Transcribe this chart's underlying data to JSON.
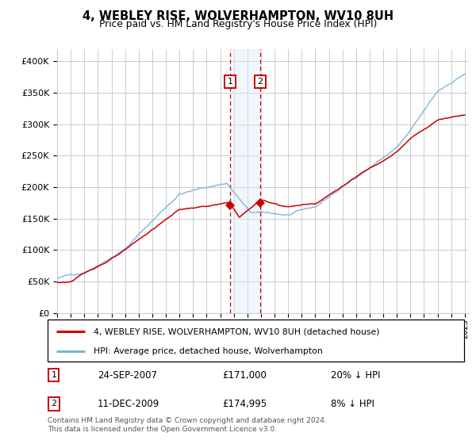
{
  "title": "4, WEBLEY RISE, WOLVERHAMPTON, WV10 8UH",
  "subtitle": "Price paid vs. HM Land Registry's House Price Index (HPI)",
  "legend_line1": "4, WEBLEY RISE, WOLVERHAMPTON, WV10 8UH (detached house)",
  "legend_line2": "HPI: Average price, detached house, Wolverhampton",
  "annotation1_date": "24-SEP-2007",
  "annotation1_price": "£171,000",
  "annotation1_hpi": "20% ↓ HPI",
  "annotation2_date": "11-DEC-2009",
  "annotation2_price": "£174,995",
  "annotation2_hpi": "8% ↓ HPI",
  "footer": "Contains HM Land Registry data © Crown copyright and database right 2024.\nThis data is licensed under the Open Government Licence v3.0.",
  "hpi_color": "#7ab5d8",
  "sale_color": "#cc0000",
  "annotation_box_color": "#cc0000",
  "shade_color": "#daeaf5",
  "vline_color": "#cc0000",
  "background_color": "#ffffff",
  "grid_color": "#cccccc",
  "ylim": [
    0,
    420000
  ],
  "yticks": [
    0,
    50000,
    100000,
    150000,
    200000,
    250000,
    300000,
    350000,
    400000
  ],
  "sale1_year": 2007.73,
  "sale1_price": 171000,
  "sale2_year": 2009.94,
  "sale2_price": 174995,
  "xmin": 1995,
  "xmax": 2025.3
}
